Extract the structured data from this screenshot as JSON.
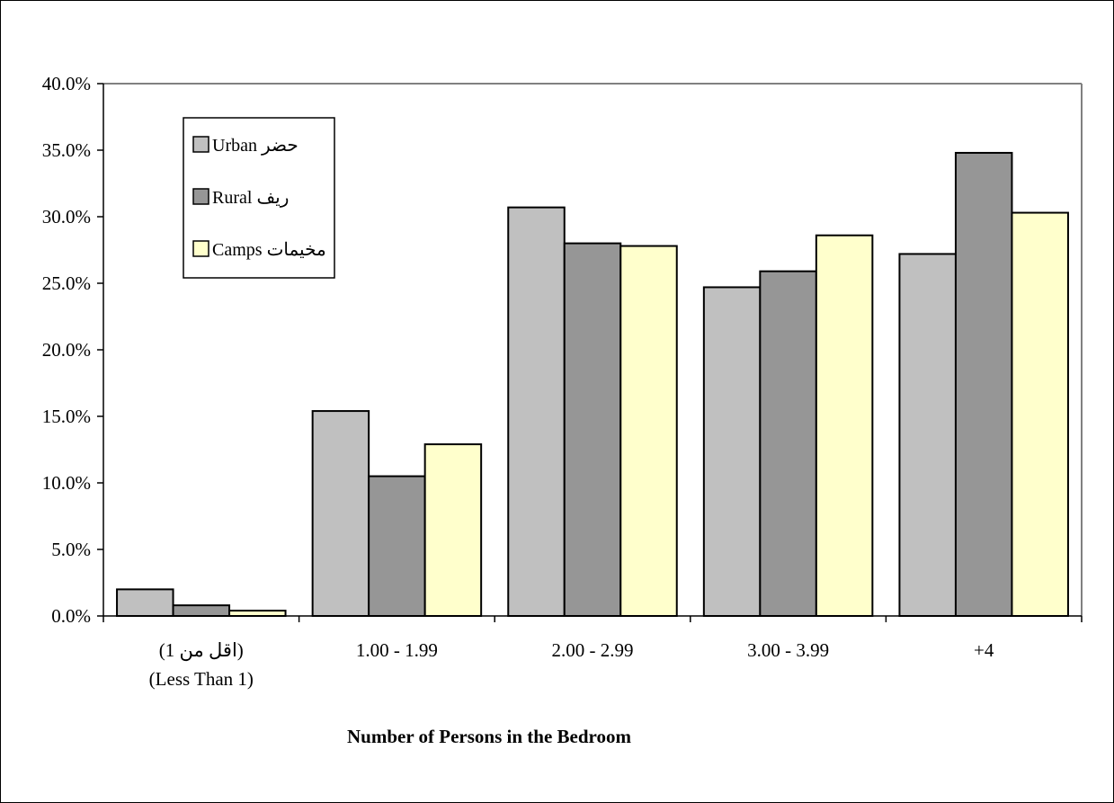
{
  "chart_data": {
    "type": "bar",
    "title": "",
    "xlabel": "Number of Persons in the Bedroom",
    "ylabel": "",
    "categories": [
      [
        "(اقل من 1)",
        "(Less Than 1)"
      ],
      [
        "1.00 - 1.99"
      ],
      [
        "2.00 - 2.99"
      ],
      [
        "3.00 - 3.99"
      ],
      [
        "+4"
      ]
    ],
    "series": [
      {
        "name": "Urban  حضر",
        "color": "#c0c0c0",
        "values": [
          2.0,
          15.4,
          30.7,
          24.7,
          27.2
        ]
      },
      {
        "name": "Rural  ريف",
        "color": "#969696",
        "values": [
          0.8,
          10.5,
          28.0,
          25.9,
          34.8
        ]
      },
      {
        "name": "Camps  مخيمات",
        "color": "#ffffcc",
        "values": [
          0.4,
          12.9,
          27.8,
          28.6,
          30.3
        ]
      }
    ],
    "ylim": [
      0,
      40
    ],
    "yticks": [
      "0.0%",
      "5.0%",
      "10.0%",
      "15.0%",
      "20.0%",
      "25.0%",
      "30.0%",
      "35.0%",
      "40.0%"
    ],
    "grid": false,
    "legend_position": "top-left"
  }
}
